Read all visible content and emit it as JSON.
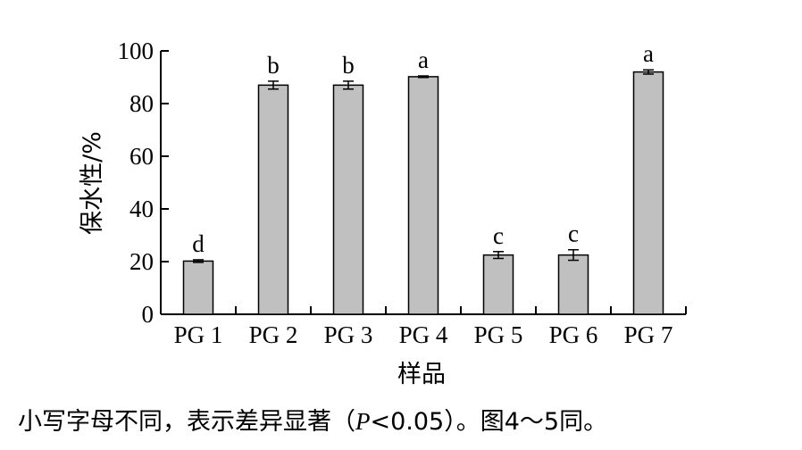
{
  "chart_data": {
    "type": "bar",
    "categories": [
      "PG 1",
      "PG 2",
      "PG 3",
      "PG 4",
      "PG 5",
      "PG 6",
      "PG 7"
    ],
    "values": [
      20.2,
      87.0,
      87.0,
      90.2,
      22.5,
      22.5,
      92.0
    ],
    "errors": [
      0.5,
      1.5,
      1.5,
      0.3,
      1.3,
      2.0,
      0.8
    ],
    "significance": [
      "d",
      "b",
      "b",
      "a",
      "c",
      "c",
      "a"
    ],
    "ylabel": "保水性/%",
    "xlabel": "样品",
    "ylim": [
      0,
      100
    ],
    "yticks": [
      0,
      20,
      40,
      60,
      80,
      100
    ],
    "grid": false,
    "bar_color": "#c0c0c0"
  },
  "note": {
    "text_before": "小写字母不同，表示差异显著（",
    "p_symbol": "P",
    "text_after": "<0.05）。图4～5同。"
  }
}
